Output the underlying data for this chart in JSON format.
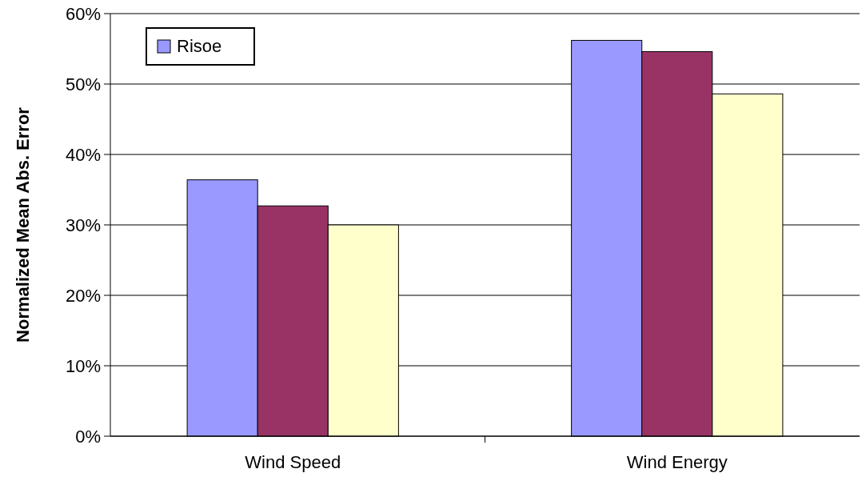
{
  "chart_data": {
    "type": "bar",
    "ylabel": "Normalized Mean Abs. Error",
    "categories": [
      "Wind Speed",
      "Wind Energy"
    ],
    "series": [
      {
        "name": "Risoe",
        "color": "#9999ff",
        "values": [
          36.4,
          56.2
        ]
      },
      {
        "color": "#993366",
        "values": [
          32.7,
          54.6
        ]
      },
      {
        "color": "#ffffcc",
        "values": [
          30.0,
          48.6
        ]
      }
    ],
    "ylim": [
      0,
      60
    ],
    "yticks": [
      {
        "value": 0,
        "label": "0%"
      },
      {
        "value": 10,
        "label": "10%"
      },
      {
        "value": 20,
        "label": "20%"
      },
      {
        "value": 30,
        "label": "30%"
      },
      {
        "value": 40,
        "label": "40%"
      },
      {
        "value": 50,
        "label": "50%"
      },
      {
        "value": 60,
        "label": "60%"
      }
    ],
    "grid": "y",
    "legend": "top left"
  }
}
